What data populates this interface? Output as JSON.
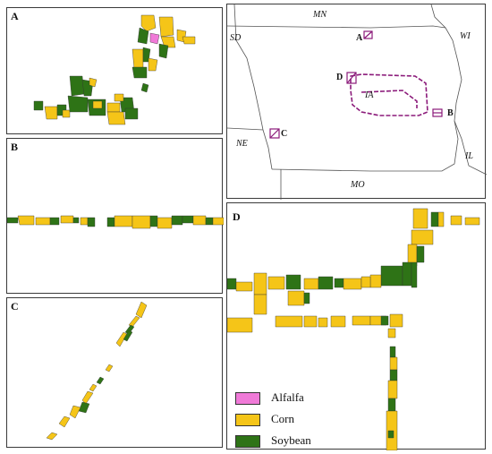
{
  "panels": {
    "a": {
      "letter": "A"
    },
    "b": {
      "letter": "B"
    },
    "c": {
      "letter": "C"
    },
    "d": {
      "letter": "D"
    }
  },
  "overview_map": {
    "states": {
      "mn": "MN",
      "sd": "SD",
      "wi": "WI",
      "ne": "NE",
      "ia": "IA",
      "il": "IL",
      "mo": "MO"
    },
    "sites": {
      "a": "A",
      "b": "B",
      "c": "C",
      "d": "D"
    },
    "route_color": "#8b1a7a"
  },
  "legend": {
    "items": [
      {
        "label": "Alfalfa",
        "color": "#f07ad8"
      },
      {
        "label": "Corn",
        "color": "#f5c518"
      },
      {
        "label": "Soybean",
        "color": "#2e7316"
      }
    ]
  },
  "colors": {
    "corn": "#f5c518",
    "soybean": "#2e7316",
    "alfalfa": "#f07ad8",
    "outline": "#333333"
  }
}
